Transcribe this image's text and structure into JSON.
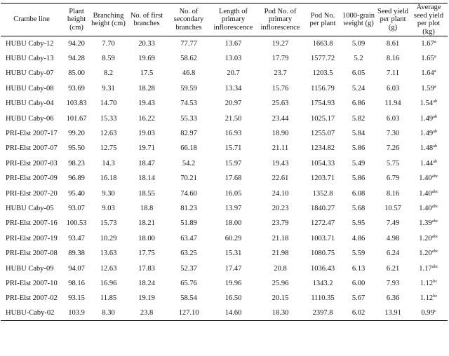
{
  "headers": [
    "Crambe line",
    "Plant height (cm)",
    "Branching height (cm)",
    "No. of first branches",
    "No. of secondary branches",
    "Length of primary inflorescence",
    "Pod No. of primary inflorescence",
    "Pod No. per plant",
    "1000-grain weight (g)",
    "Seed yield per plant (g)",
    "Average seed yield per plot (kg)"
  ],
  "rows": [
    {
      "line": "HUBU Caby-12",
      "cells": [
        "94.20",
        "7.70",
        "20.33",
        "77.77",
        "13.67",
        "19.27",
        "1663.8",
        "5.09",
        "8.61"
      ],
      "avg": "1.67",
      "sig": "a"
    },
    {
      "line": "HUBU Caby-13",
      "cells": [
        "94.28",
        "8.59",
        "19.69",
        "58.62",
        "13.03",
        "17.79",
        "1577.72",
        "5.2",
        "8.16"
      ],
      "avg": "1.65",
      "sig": "a"
    },
    {
      "line": "HUBU Caby-07",
      "cells": [
        "85.00",
        "8.2",
        "17.5",
        "46.8",
        "20.7",
        "23.7",
        "1203.5",
        "6.05",
        "7.11"
      ],
      "avg": "1.64",
      "sig": "a"
    },
    {
      "line": "HUBU Caby-08",
      "cells": [
        "93.69",
        "9.31",
        "18.28",
        "59.59",
        "13.34",
        "15.76",
        "1156.79",
        "5.24",
        "6.03"
      ],
      "avg": "1.59",
      "sig": "a"
    },
    {
      "line": "HUBU Caby-04",
      "cells": [
        "103.83",
        "14.70",
        "19.43",
        "74.53",
        "20.97",
        "25.63",
        "1754.93",
        "6.86",
        "11.94"
      ],
      "avg": "1.54",
      "sig": "ab"
    },
    {
      "line": "HUBU Caby-06",
      "cells": [
        "101.67",
        "15.33",
        "16.22",
        "55.33",
        "21.50",
        "23.44",
        "1025.17",
        "5.82",
        "6.03"
      ],
      "avg": "1.49",
      "sig": "ab"
    },
    {
      "line": "PRI-Elst 2007-17",
      "cells": [
        "99.20",
        "12.63",
        "19.03",
        "82.97",
        "16.93",
        "18.90",
        "1255.07",
        "5.84",
        "7.30"
      ],
      "avg": "1.49",
      "sig": "ab"
    },
    {
      "line": "PRI-Elst 2007-07",
      "cells": [
        "95.50",
        "12.75",
        "19.71",
        "66.18",
        "15.71",
        "21.11",
        "1234.82",
        "5.86",
        "7.26"
      ],
      "avg": "1.48",
      "sig": "ab"
    },
    {
      "line": "PRI-Elst 2007-03",
      "cells": [
        "98.23",
        "14.3",
        "18.47",
        "54.2",
        "15.97",
        "19.43",
        "1054.33",
        "5.49",
        "5.75"
      ],
      "avg": "1.44",
      "sig": "ab"
    },
    {
      "line": "PRI-Elst 2007-09",
      "cells": [
        "96.89",
        "16.18",
        "18.14",
        "70.21",
        "17.68",
        "22.61",
        "1203.71",
        "5.86",
        "6.79"
      ],
      "avg": "1.40",
      "sig": "abc"
    },
    {
      "line": "PRI-Elst 2007-20",
      "cells": [
        "95.40",
        "9.30",
        "18.55",
        "74.60",
        "16.05",
        "24.10",
        "1352.8",
        "6.08",
        "8.16"
      ],
      "avg": "1.40",
      "sig": "abc"
    },
    {
      "line": "HUBU Caby-05",
      "cells": [
        "93.07",
        "9.03",
        "18.8",
        "81.23",
        "13.97",
        "20.23",
        "1840.27",
        "5.68",
        "10.57"
      ],
      "avg": "1.40",
      "sig": "abc"
    },
    {
      "line": "PRI-Elst 2007-16",
      "cells": [
        "100.53",
        "15.73",
        "18.21",
        "51.89",
        "18.00",
        "23.79",
        "1272.47",
        "5.95",
        "7.49"
      ],
      "avg": "1.39",
      "sig": "abc"
    },
    {
      "line": "PRI-Elst 2007-19",
      "cells": [
        "93.47",
        "10.29",
        "18.00",
        "63.47",
        "60.29",
        "21.18",
        "1003.71",
        "4.86",
        "4.98"
      ],
      "avg": "1.20",
      "sig": "abc"
    },
    {
      "line": "PRI-Elst 2007-08",
      "cells": [
        "89.38",
        "13.63",
        "17.75",
        "63.25",
        "15.31",
        "21.98",
        "1080.75",
        "5.59",
        "6.24"
      ],
      "avg": "1.20",
      "sig": "abc"
    },
    {
      "line": "HUBU Caby-09",
      "cells": [
        "94.07",
        "12.63",
        "17.83",
        "52.37",
        "17.47",
        "20.8",
        "1036.43",
        "6.13",
        "6.21"
      ],
      "avg": "1.17",
      "sig": "abc"
    },
    {
      "line": "PRI-Elst 2007-10",
      "cells": [
        "98.16",
        "16.96",
        "18.24",
        "65.76",
        "19.96",
        "25.96",
        "1343.2",
        "6.00",
        "7.93"
      ],
      "avg": "1.12",
      "sig": "bc"
    },
    {
      "line": "PRI-Elst 2007-02",
      "cells": [
        "93.15",
        "11.85",
        "19.19",
        "58.54",
        "16.50",
        "20.15",
        "1110.35",
        "5.67",
        "6.36"
      ],
      "avg": "1.12",
      "sig": "bc"
    },
    {
      "line": "HUBU-Caby-02",
      "cells": [
        "103.9",
        "8.30",
        "23.8",
        "127.10",
        "14.60",
        "18.30",
        "2397.8",
        "6.02",
        "13.91"
      ],
      "avg": "0.99",
      "sig": "c"
    }
  ]
}
